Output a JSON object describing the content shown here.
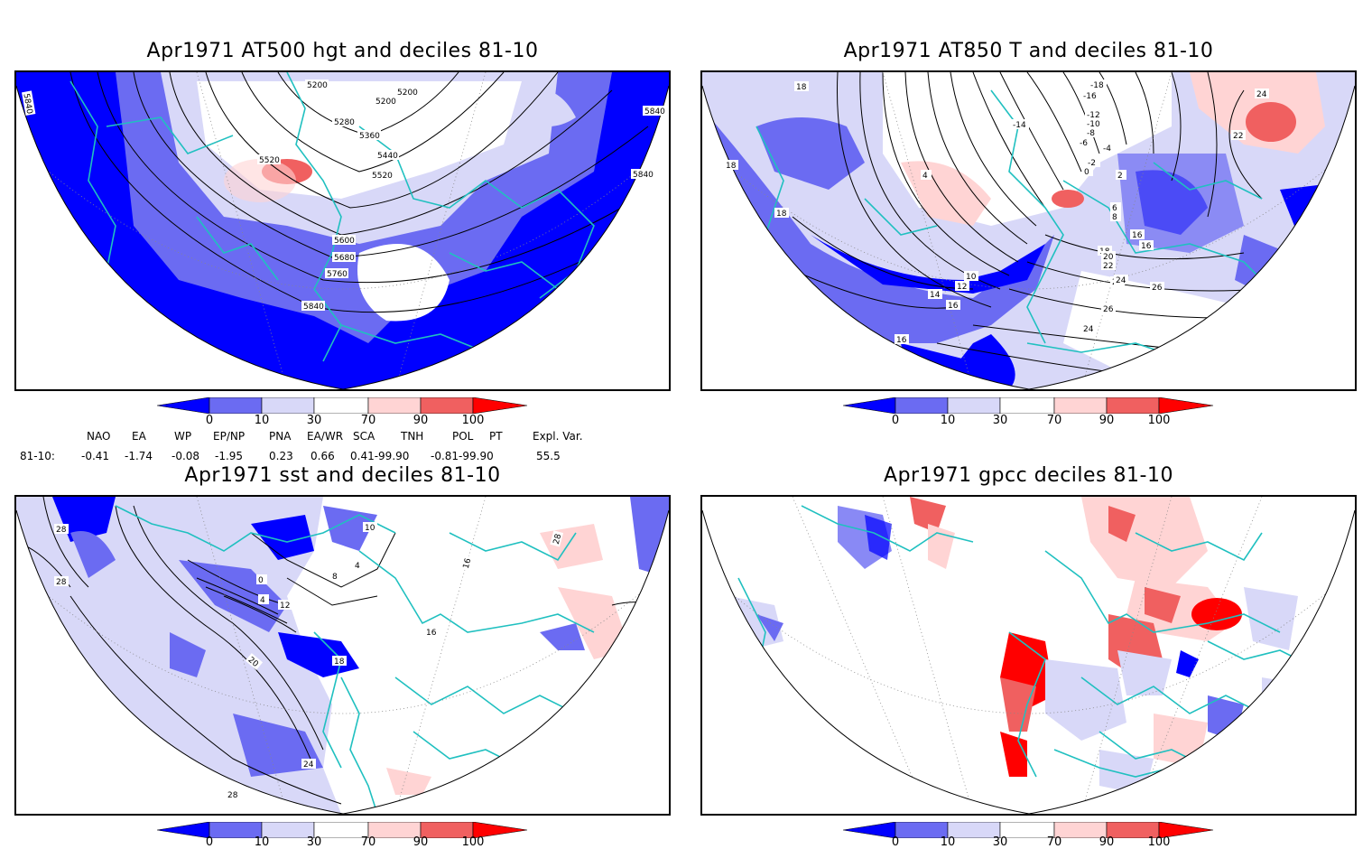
{
  "panels": [
    {
      "id": "p1",
      "title": "Apr1971 AT500 hgt and deciles 81-10",
      "contour_labels": [
        "5200",
        "5200",
        "5200",
        "5280",
        "5360",
        "5440",
        "5520",
        "5520",
        "5600",
        "5680",
        "5760",
        "5840",
        "5840",
        "5840",
        "5840"
      ]
    },
    {
      "id": "p2",
      "title": "Apr1971 AT850 T and deciles 81-10",
      "contour_labels": [
        "18",
        "18",
        "18",
        "-18",
        "-16",
        "-14",
        "-12",
        "-10",
        "-8",
        "-6",
        "-4",
        "-2",
        "0",
        "2",
        "4",
        "6",
        "8",
        "10",
        "12",
        "14",
        "16",
        "16",
        "16",
        "18",
        "20",
        "22",
        "22",
        "22",
        "24",
        "24",
        "24",
        "26",
        "26",
        "16"
      ]
    },
    {
      "id": "p3",
      "title": "Apr1971 sst and deciles 81-10",
      "contour_labels": [
        "28",
        "28",
        "28",
        "4",
        "8",
        "10",
        "12",
        "16",
        "16",
        "18",
        "20",
        "24",
        "28",
        "0",
        "4"
      ]
    },
    {
      "id": "p4",
      "title": "Apr1971 gpcc deciles 81-10",
      "contour_labels": []
    }
  ],
  "colorbar": {
    "labels": [
      "0",
      "10",
      "30",
      "70",
      "90",
      "100"
    ],
    "colors": [
      "#0000ff",
      "#6b6bf2",
      "#d8d8f8",
      "#ffffff",
      "#ffd4d4",
      "#f06060",
      "#ff0000"
    ]
  },
  "indices": {
    "headers": [
      "NAO",
      "EA",
      "WP",
      "EP/NP",
      "PNA",
      "EA/WR",
      "SCA",
      "TNH",
      "POL",
      "PT",
      "Expl. Var."
    ],
    "row_label": "81-10:",
    "values": [
      "-0.41",
      "-1.74",
      "-0.08",
      "-1.95",
      "0.23",
      "0.66",
      "0.41-99.90",
      "-0.81-99.90",
      "55.5"
    ]
  },
  "map_colors": {
    "coast": "#20c0c0",
    "deep_blue": "#0000ff",
    "mid_blue": "#6b6bf2",
    "light_blue": "#d8d8f8",
    "light_red": "#ffd4d4",
    "mid_red": "#f06060",
    "deep_red": "#ff0000"
  }
}
